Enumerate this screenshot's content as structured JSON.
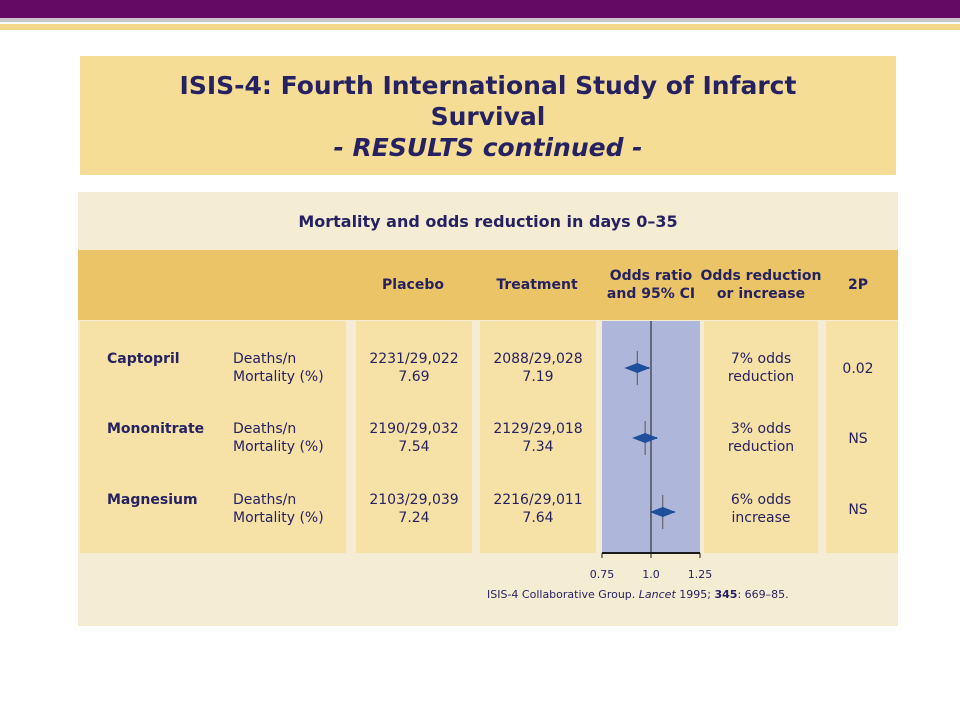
{
  "title": {
    "line1": "ISIS-4: Fourth International Study of Infarct Survival",
    "line2": "- RESULTS continued -"
  },
  "table": {
    "heading": "Mortality and odds reduction in days 0–35",
    "headers": {
      "placebo": "Placebo",
      "treatment": "Treatment",
      "odds_ratio": "Odds ratio and 95% CI",
      "odds_reduction": "Odds reduction or increase",
      "p": "2P"
    },
    "rows": [
      {
        "drug": "Captopril",
        "measure_1": "Deaths/n",
        "measure_2": "Mortality (%)",
        "placebo_deaths": "2231/29,022",
        "placebo_mortality": "7.69",
        "treatment_deaths": "2088/29,028",
        "treatment_mortality": "7.19",
        "effect_1": "7% odds",
        "effect_2": "reduction",
        "p": "0.02"
      },
      {
        "drug": "Mononitrate",
        "measure_1": "Deaths/n",
        "measure_2": "Mortality (%)",
        "placebo_deaths": "2190/29,032",
        "placebo_mortality": "7.54",
        "treatment_deaths": "2129/29,018",
        "treatment_mortality": "7.34",
        "effect_1": "3% odds",
        "effect_2": "reduction",
        "p": "NS"
      },
      {
        "drug": "Magnesium",
        "measure_1": "Deaths/n",
        "measure_2": "Mortality (%)",
        "placebo_deaths": "2103/29,039",
        "placebo_mortality": "7.24",
        "treatment_deaths": "2216/29,011",
        "treatment_mortality": "7.64",
        "effect_1": "6% odds",
        "effect_2": "increase",
        "p": "NS"
      }
    ]
  },
  "chart_data": {
    "type": "forest",
    "title": "Odds ratio and 95% CI",
    "categories": [
      "Captopril",
      "Mononitrate",
      "Magnesium"
    ],
    "series": [
      {
        "odds_ratio": [
          0.93,
          0.97,
          1.06
        ],
        "ci_low": [
          0.88,
          0.92,
          1.0
        ],
        "ci_high": [
          0.99,
          1.03,
          1.12
        ]
      }
    ],
    "xlim": [
      0.75,
      1.25
    ],
    "x_ticks": [
      "0.75",
      "1.0",
      "1.25"
    ],
    "reference_line": 1.0,
    "colors": {
      "marker": "#1f4e9a",
      "ci_band": "#aeb7d9"
    }
  },
  "reference": {
    "prefix": "ISIS-4 Collaborative Group.",
    "journal": "Lancet",
    "year": "1995;",
    "volume": "345",
    "pages": ": 669–85."
  }
}
